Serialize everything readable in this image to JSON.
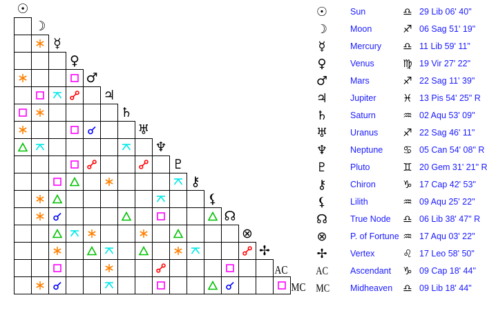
{
  "aspect_colors": {
    "sextile": "#ff8000",
    "square": "#ff00ff",
    "trine": "#00c000",
    "quincunx": "#00e8e8",
    "opposition": "#ff0000",
    "conjunction": "#0000ff"
  },
  "planets": [
    {
      "glyph": "☉",
      "name": "Sun",
      "sign_glyph": "♎",
      "position": "29 Lib 06' 40\""
    },
    {
      "glyph": "☽",
      "name": "Moon",
      "sign_glyph": "♐",
      "position": "06 Sag 51' 19\""
    },
    {
      "glyph": "☿",
      "name": "Mercury",
      "sign_glyph": "♎",
      "position": "11 Lib 59' 11\""
    },
    {
      "glyph": "♀",
      "name": "Venus",
      "sign_glyph": "♍",
      "position": "19 Vir 27' 22\""
    },
    {
      "glyph": "♂",
      "name": "Mars",
      "sign_glyph": "♐",
      "position": "22 Sag 11' 39\""
    },
    {
      "glyph": "♃",
      "name": "Jupiter",
      "sign_glyph": "♓",
      "position": "13 Pis 54' 25\" R"
    },
    {
      "glyph": "♄",
      "name": "Saturn",
      "sign_glyph": "♒",
      "position": "02 Aqu 53' 09\""
    },
    {
      "glyph": "♅",
      "name": "Uranus",
      "sign_glyph": "♐",
      "position": "22 Sag 46' 11\""
    },
    {
      "glyph": "♆",
      "name": "Neptune",
      "sign_glyph": "♋",
      "position": "05 Can 54' 08\" R"
    },
    {
      "glyph": "♇",
      "name": "Pluto",
      "sign_glyph": "♊",
      "position": "20 Gem 31' 21\" R"
    },
    {
      "glyph": "⚷",
      "name": "Chiron",
      "sign_glyph": "♑",
      "position": "17 Cap 42' 53\""
    },
    {
      "glyph": "⚸",
      "name": "Lilith",
      "sign_glyph": "♒",
      "position": "09 Aqu 25' 22\""
    },
    {
      "glyph": "☊",
      "name": "True Node",
      "sign_glyph": "♎",
      "position": "06 Lib 38' 47\" R"
    },
    {
      "glyph": "⊗",
      "name": "P. of Fortune",
      "sign_glyph": "♒",
      "position": "17 Aqu 03' 22\""
    },
    {
      "glyph": "✢",
      "name": "Vertex",
      "sign_glyph": "♌",
      "position": "17 Leo 58' 50\""
    },
    {
      "glyph": "AC",
      "name": "Ascendant",
      "sign_glyph": "♑",
      "position": "09 Cap 18' 44\""
    },
    {
      "glyph": "MC",
      "name": "Midheaven",
      "sign_glyph": "♎",
      "position": "09 Lib 18' 44\""
    }
  ],
  "aspect_grid": [
    [
      ""
    ],
    [
      "",
      "sextile"
    ],
    [
      "",
      "",
      ""
    ],
    [
      "sextile",
      "",
      "",
      "square"
    ],
    [
      "",
      "square",
      "quincunx",
      "opposition",
      ""
    ],
    [
      "square",
      "sextile",
      "",
      "",
      "",
      ""
    ],
    [
      "sextile",
      "",
      "",
      "square",
      "conjunction",
      "",
      ""
    ],
    [
      "trine",
      "quincunx",
      "",
      "",
      "",
      "",
      "quincunx",
      ""
    ],
    [
      "",
      "",
      "",
      "square",
      "opposition",
      "",
      "",
      "opposition",
      ""
    ],
    [
      "",
      "",
      "square",
      "trine",
      "",
      "sextile",
      "",
      "",
      "",
      "quincunx"
    ],
    [
      "",
      "sextile",
      "trine",
      "",
      "",
      "",
      "",
      "",
      "quincunx",
      "",
      ""
    ],
    [
      "",
      "sextile",
      "conjunction",
      "",
      "",
      "",
      "trine",
      "",
      "square",
      "",
      "",
      "trine"
    ],
    [
      "",
      "",
      "trine",
      "quincunx",
      "sextile",
      "",
      "",
      "sextile",
      "",
      "trine",
      "",
      "",
      ""
    ],
    [
      "",
      "",
      "sextile",
      "",
      "trine",
      "quincunx",
      "",
      "trine",
      "",
      "sextile",
      "quincunx",
      "",
      "",
      "opposition"
    ],
    [
      "",
      "",
      "square",
      "",
      "",
      "sextile",
      "",
      "",
      "opposition",
      "",
      "",
      "",
      "square",
      "",
      ""
    ],
    [
      "",
      "sextile",
      "conjunction",
      "",
      "",
      "quincunx",
      "",
      "",
      "square",
      "",
      "",
      "trine",
      "conjunction",
      "",
      "",
      "square"
    ]
  ]
}
